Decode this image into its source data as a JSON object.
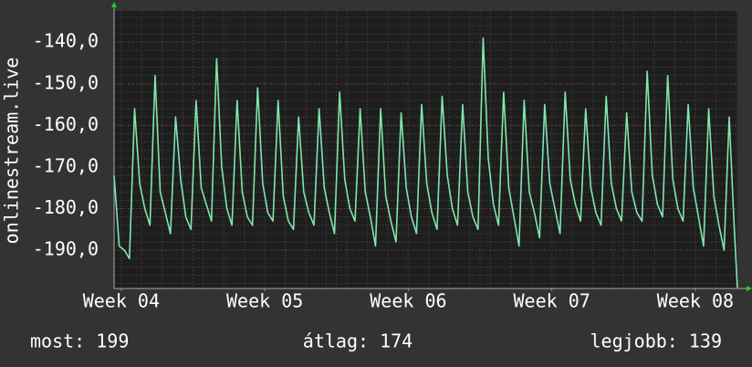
{
  "chart_data": {
    "type": "line",
    "y_label": "onlinestream.live",
    "x": [
      0,
      0.25,
      0.5,
      0.75,
      1,
      1.25,
      1.5,
      1.75,
      2,
      2.25,
      2.5,
      2.75,
      3,
      3.25,
      3.5,
      3.75,
      4,
      4.25,
      4.5,
      4.75,
      5,
      5.25,
      5.5,
      5.75,
      6,
      6.25,
      6.5,
      6.75,
      7,
      7.25,
      7.5,
      7.75,
      8,
      8.25,
      8.5,
      8.75,
      9,
      9.25,
      9.5,
      9.75,
      10,
      10.25,
      10.5,
      10.75,
      11,
      11.25,
      11.5,
      11.75,
      12,
      12.25,
      12.5,
      12.75,
      13,
      13.25,
      13.5,
      13.75,
      14,
      14.25,
      14.5,
      14.75,
      15,
      15.25,
      15.5,
      15.75,
      16,
      16.25,
      16.5,
      16.75,
      17,
      17.25,
      17.5,
      17.75,
      18,
      18.25,
      18.5,
      18.75,
      19,
      19.25,
      19.5,
      19.75,
      20,
      20.25,
      20.5,
      20.75,
      21,
      21.25,
      21.5,
      21.75,
      22,
      22.25,
      22.5,
      22.75,
      23,
      23.25,
      23.5,
      23.75,
      24,
      24.25,
      24.5,
      24.75,
      25,
      25.25,
      25.5,
      25.75,
      26,
      26.25,
      26.5,
      26.75,
      27,
      27.25,
      27.5,
      27.75,
      28,
      28.25,
      28.5,
      28.75,
      29,
      29.25,
      29.5,
      29.75,
      30,
      30.25,
      30.4
    ],
    "series": [
      {
        "color": "#7fe6ad",
        "values": [
          -172,
          -189,
          -190,
          -192,
          -156,
          -174,
          -180,
          -184,
          -148,
          -176,
          -181,
          -186,
          -158,
          -173,
          -182,
          -185,
          -154,
          -175,
          -179,
          -183,
          -144,
          -170,
          -180,
          -184,
          -154,
          -176,
          -182,
          -184,
          -151,
          -174,
          -181,
          -183,
          -154,
          -177,
          -183,
          -185,
          -158,
          -176,
          -181,
          -184,
          -156,
          -175,
          -181,
          -186,
          -152,
          -173,
          -180,
          -183,
          -156,
          -176,
          -182,
          -189,
          -156,
          -177,
          -183,
          -188,
          -157,
          -175,
          -182,
          -186,
          -155,
          -174,
          -181,
          -185,
          -153,
          -172,
          -180,
          -184,
          -155,
          -176,
          -182,
          -185,
          -139,
          -168,
          -179,
          -184,
          -152,
          -175,
          -182,
          -189,
          -154,
          -176,
          -181,
          -187,
          -155,
          -174,
          -180,
          -186,
          -152,
          -173,
          -179,
          -183,
          -156,
          -175,
          -181,
          -184,
          -153,
          -174,
          -180,
          -183,
          -157,
          -176,
          -181,
          -183,
          -147,
          -172,
          -179,
          -182,
          -148,
          -173,
          -180,
          -183,
          -155,
          -175,
          -182,
          -189,
          -156,
          -177,
          -184,
          -190,
          -158,
          -185,
          -199
        ]
      }
    ],
    "xlim": [
      0,
      30.4
    ],
    "xticks": [
      {
        "value": 0.35,
        "label": "Week 04"
      },
      {
        "value": 7.35,
        "label": "Week 05"
      },
      {
        "value": 14.35,
        "label": "Week 06"
      },
      {
        "value": 21.35,
        "label": "Week 07"
      },
      {
        "value": 28.35,
        "label": "Week 08"
      }
    ],
    "ylim": [
      -199.2,
      -132.5
    ],
    "yticks": [
      {
        "value": -140,
        "label": "-140,0"
      },
      {
        "value": -150,
        "label": "-150,0"
      },
      {
        "value": -160,
        "label": "-160,0"
      },
      {
        "value": -170,
        "label": "-170,0"
      },
      {
        "value": -180,
        "label": "-180,0"
      },
      {
        "value": -190,
        "label": "-190,0"
      }
    ],
    "grid": true,
    "footer": [
      "most: 199",
      "átlag: 174",
      "legjobb: 139"
    ]
  }
}
